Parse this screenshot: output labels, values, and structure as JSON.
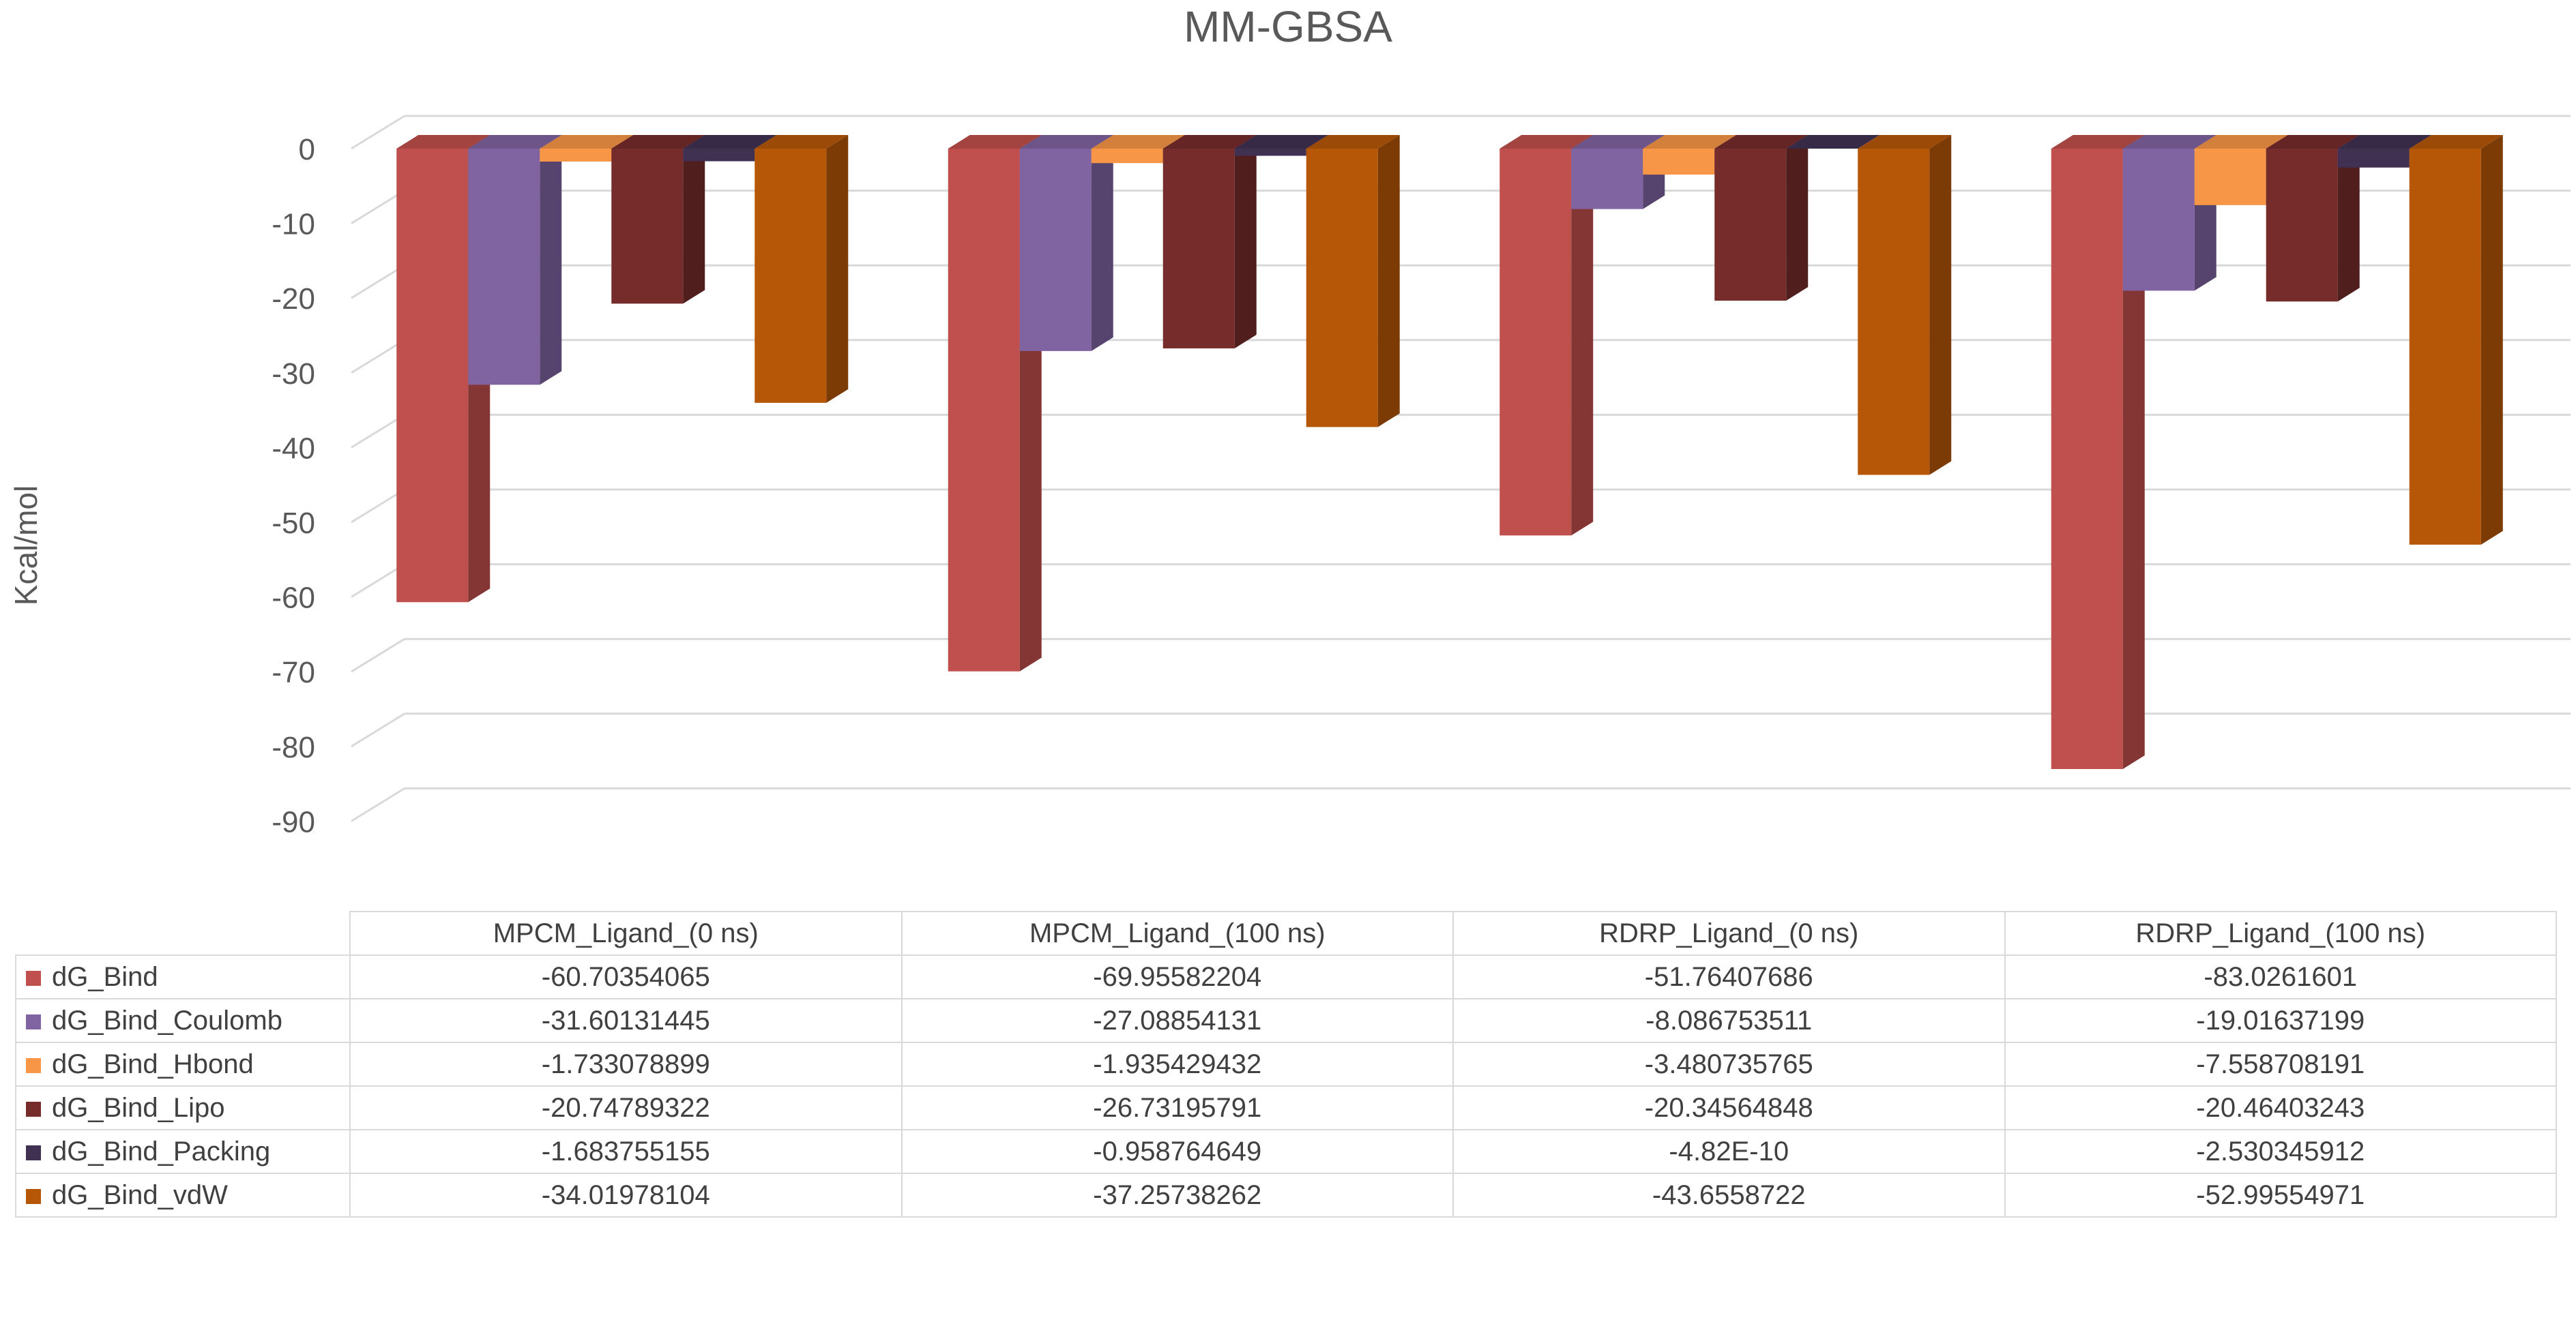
{
  "chart_data": {
    "type": "bar",
    "title": "MM-GBSA",
    "xlabel": "",
    "ylabel": "Kcal/mol",
    "ylim": [
      -90,
      0
    ],
    "yticks": [
      0,
      -10,
      -20,
      -30,
      -40,
      -50,
      -60,
      -70,
      -80,
      -90
    ],
    "grid": true,
    "legend": "data-table",
    "categories": [
      "MPCM_Ligand_(0 ns)",
      "MPCM_Ligand_(100 ns)",
      "RDRP_Ligand_(0 ns)",
      "RDRP_Ligand_(100 ns)"
    ],
    "series": [
      {
        "name": "dG_Bind",
        "color": "#c0504d",
        "values": [
          -60.70354065,
          -69.95582204,
          -51.76407686,
          -83.0261601
        ],
        "labels": [
          "-60.70354065",
          "-69.95582204",
          "-51.76407686",
          "-83.0261601"
        ]
      },
      {
        "name": "dG_Bind_Coulomb",
        "color": "#8064a2",
        "values": [
          -31.60131445,
          -27.08854131,
          -8.086753511,
          -19.01637199
        ],
        "labels": [
          "-31.60131445",
          "-27.08854131",
          "-8.086753511",
          "-19.01637199"
        ]
      },
      {
        "name": "dG_Bind_Hbond",
        "color": "#f79646",
        "values": [
          -1.733078899,
          -1.935429432,
          -3.480735765,
          -7.558708191
        ],
        "labels": [
          "-1.733078899",
          "-1.935429432",
          "-3.480735765",
          "-7.558708191"
        ]
      },
      {
        "name": "dG_Bind_Lipo",
        "color": "#772c2c",
        "values": [
          -20.74789322,
          -26.73195791,
          -20.34564848,
          -20.46403243
        ],
        "labels": [
          "-20.74789322",
          "-26.73195791",
          "-20.34564848",
          "-20.46403243"
        ]
      },
      {
        "name": "dG_Bind_Packing",
        "color": "#403152",
        "values": [
          -1.683755155,
          -0.958764649,
          -4.82e-10,
          -2.530345912
        ],
        "labels": [
          "-1.683755155",
          "-0.958764649",
          "-4.82E-10",
          "-2.530345912"
        ]
      },
      {
        "name": "dG_Bind_vdW",
        "color": "#b65708",
        "values": [
          -34.01978104,
          -37.25738262,
          -43.6558722,
          -52.99554971
        ],
        "labels": [
          "-34.01978104",
          "-37.25738262",
          "-43.6558722",
          "-52.99554971"
        ]
      }
    ]
  }
}
